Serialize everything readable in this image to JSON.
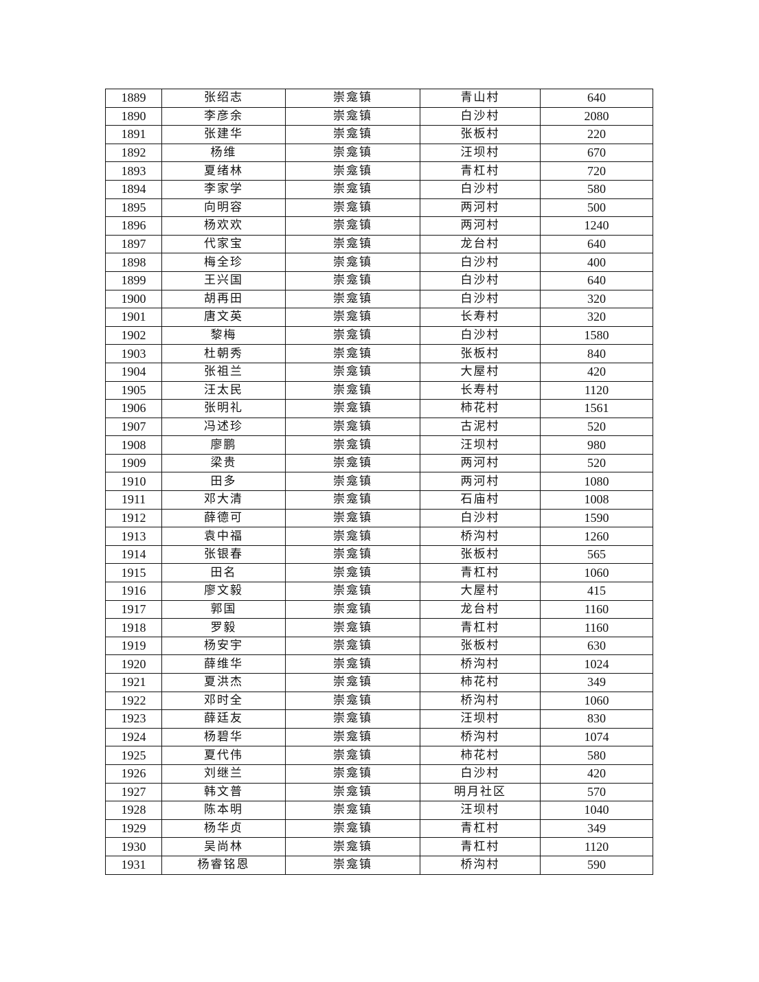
{
  "table": {
    "rows": [
      [
        "1889",
        "张绍志",
        "崇龛镇",
        "青山村",
        "640"
      ],
      [
        "1890",
        "李彦余",
        "崇龛镇",
        "白沙村",
        "2080"
      ],
      [
        "1891",
        "张建华",
        "崇龛镇",
        "张板村",
        "220"
      ],
      [
        "1892",
        "杨维",
        "崇龛镇",
        "汪坝村",
        "670"
      ],
      [
        "1893",
        "夏绪林",
        "崇龛镇",
        "青杠村",
        "720"
      ],
      [
        "1894",
        "李家学",
        "崇龛镇",
        "白沙村",
        "580"
      ],
      [
        "1895",
        "向明容",
        "崇龛镇",
        "两河村",
        "500"
      ],
      [
        "1896",
        "杨欢欢",
        "崇龛镇",
        "两河村",
        "1240"
      ],
      [
        "1897",
        "代家宝",
        "崇龛镇",
        "龙台村",
        "640"
      ],
      [
        "1898",
        "梅全珍",
        "崇龛镇",
        "白沙村",
        "400"
      ],
      [
        "1899",
        "王兴国",
        "崇龛镇",
        "白沙村",
        "640"
      ],
      [
        "1900",
        "胡再田",
        "崇龛镇",
        "白沙村",
        "320"
      ],
      [
        "1901",
        "唐文英",
        "崇龛镇",
        "长寿村",
        "320"
      ],
      [
        "1902",
        "黎梅",
        "崇龛镇",
        "白沙村",
        "1580"
      ],
      [
        "1903",
        "杜朝秀",
        "崇龛镇",
        "张板村",
        "840"
      ],
      [
        "1904",
        "张祖兰",
        "崇龛镇",
        "大屋村",
        "420"
      ],
      [
        "1905",
        "汪太民",
        "崇龛镇",
        "长寿村",
        "1120"
      ],
      [
        "1906",
        "张明礼",
        "崇龛镇",
        "柿花村",
        "1561"
      ],
      [
        "1907",
        "冯述珍",
        "崇龛镇",
        "古泥村",
        "520"
      ],
      [
        "1908",
        "廖鹏",
        "崇龛镇",
        "汪坝村",
        "980"
      ],
      [
        "1909",
        "梁贵",
        "崇龛镇",
        "两河村",
        "520"
      ],
      [
        "1910",
        "田多",
        "崇龛镇",
        "两河村",
        "1080"
      ],
      [
        "1911",
        "邓大清",
        "崇龛镇",
        "石庙村",
        "1008"
      ],
      [
        "1912",
        "薛德可",
        "崇龛镇",
        "白沙村",
        "1590"
      ],
      [
        "1913",
        "袁中福",
        "崇龛镇",
        "桥沟村",
        "1260"
      ],
      [
        "1914",
        "张银春",
        "崇龛镇",
        "张板村",
        "565"
      ],
      [
        "1915",
        "田名",
        "崇龛镇",
        "青杠村",
        "1060"
      ],
      [
        "1916",
        "廖文毅",
        "崇龛镇",
        "大屋村",
        "415"
      ],
      [
        "1917",
        "郭国",
        "崇龛镇",
        "龙台村",
        "1160"
      ],
      [
        "1918",
        "罗毅",
        "崇龛镇",
        "青杠村",
        "1160"
      ],
      [
        "1919",
        "杨安宇",
        "崇龛镇",
        "张板村",
        "630"
      ],
      [
        "1920",
        "薛维华",
        "崇龛镇",
        "桥沟村",
        "1024"
      ],
      [
        "1921",
        "夏洪杰",
        "崇龛镇",
        "柿花村",
        "349"
      ],
      [
        "1922",
        "邓时全",
        "崇龛镇",
        "桥沟村",
        "1060"
      ],
      [
        "1923",
        "薛廷友",
        "崇龛镇",
        "汪坝村",
        "830"
      ],
      [
        "1924",
        "杨碧华",
        "崇龛镇",
        "桥沟村",
        "1074"
      ],
      [
        "1925",
        "夏代伟",
        "崇龛镇",
        "柿花村",
        "580"
      ],
      [
        "1926",
        "刘继兰",
        "崇龛镇",
        "白沙村",
        "420"
      ],
      [
        "1927",
        "韩文普",
        "崇龛镇",
        "明月社区",
        "570"
      ],
      [
        "1928",
        "陈本明",
        "崇龛镇",
        "汪坝村",
        "1040"
      ],
      [
        "1929",
        "杨华贞",
        "崇龛镇",
        "青杠村",
        "349"
      ],
      [
        "1930",
        "吴尚林",
        "崇龛镇",
        "青杠村",
        "1120"
      ],
      [
        "1931",
        "杨睿铭恩",
        "崇龛镇",
        "桥沟村",
        "590"
      ]
    ]
  }
}
